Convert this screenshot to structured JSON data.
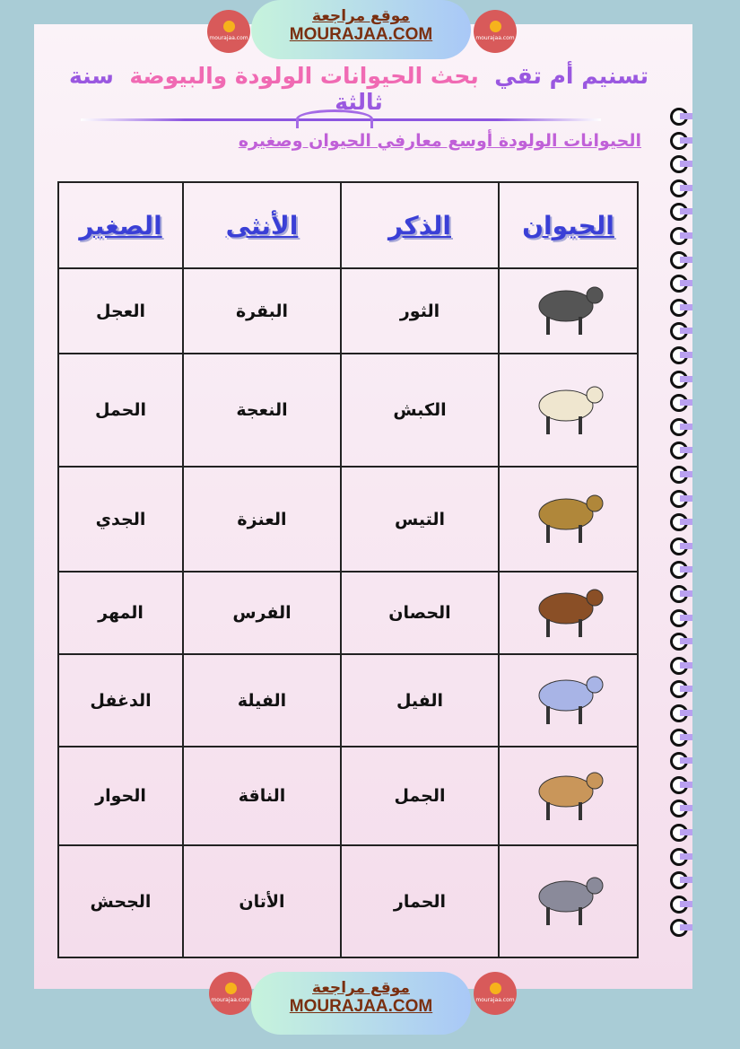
{
  "header": {
    "site_ar": "موقع مراجعة",
    "site_en": "MOURAJAA.COM",
    "logo_text": "mourajaa.com"
  },
  "title": {
    "part1": "تسنيم أم تقي",
    "part2": "بحث الحيوانات الولودة والبيوضة",
    "part3": "سنة ثالثة"
  },
  "subtitle": "الحيوانات الولودة أوسع معارفي الحيوان وصغيره",
  "table": {
    "headers": [
      "الحيوان",
      "الذكر",
      "الأنثى",
      "الصغير"
    ],
    "rows": [
      {
        "animal": "cow",
        "color": "#555555",
        "male": "الثور",
        "female": "البقرة",
        "young": "العجل"
      },
      {
        "animal": "sheep",
        "color": "#efe6cf",
        "male": "الكبش",
        "female": "النعجة",
        "young": "الحمل"
      },
      {
        "animal": "goat",
        "color": "#b0873a",
        "male": "التيس",
        "female": "العنزة",
        "young": "الجدي"
      },
      {
        "animal": "horse",
        "color": "#8a4f26",
        "male": "الحصان",
        "female": "الفرس",
        "young": "المهر"
      },
      {
        "animal": "elephant",
        "color": "#a8b4e6",
        "male": "الفيل",
        "female": "الفيلة",
        "young": "الدغفل"
      },
      {
        "animal": "camel",
        "color": "#c9965a",
        "male": "الجمل",
        "female": "الناقة",
        "young": "الحوار"
      },
      {
        "animal": "donkey",
        "color": "#8a8a9a",
        "male": "الحمار",
        "female": "الأتان",
        "young": "الجحش"
      }
    ]
  },
  "footer": {
    "site_ar": "موقع مراجعة",
    "site_en": "MOURAJAA.COM"
  }
}
